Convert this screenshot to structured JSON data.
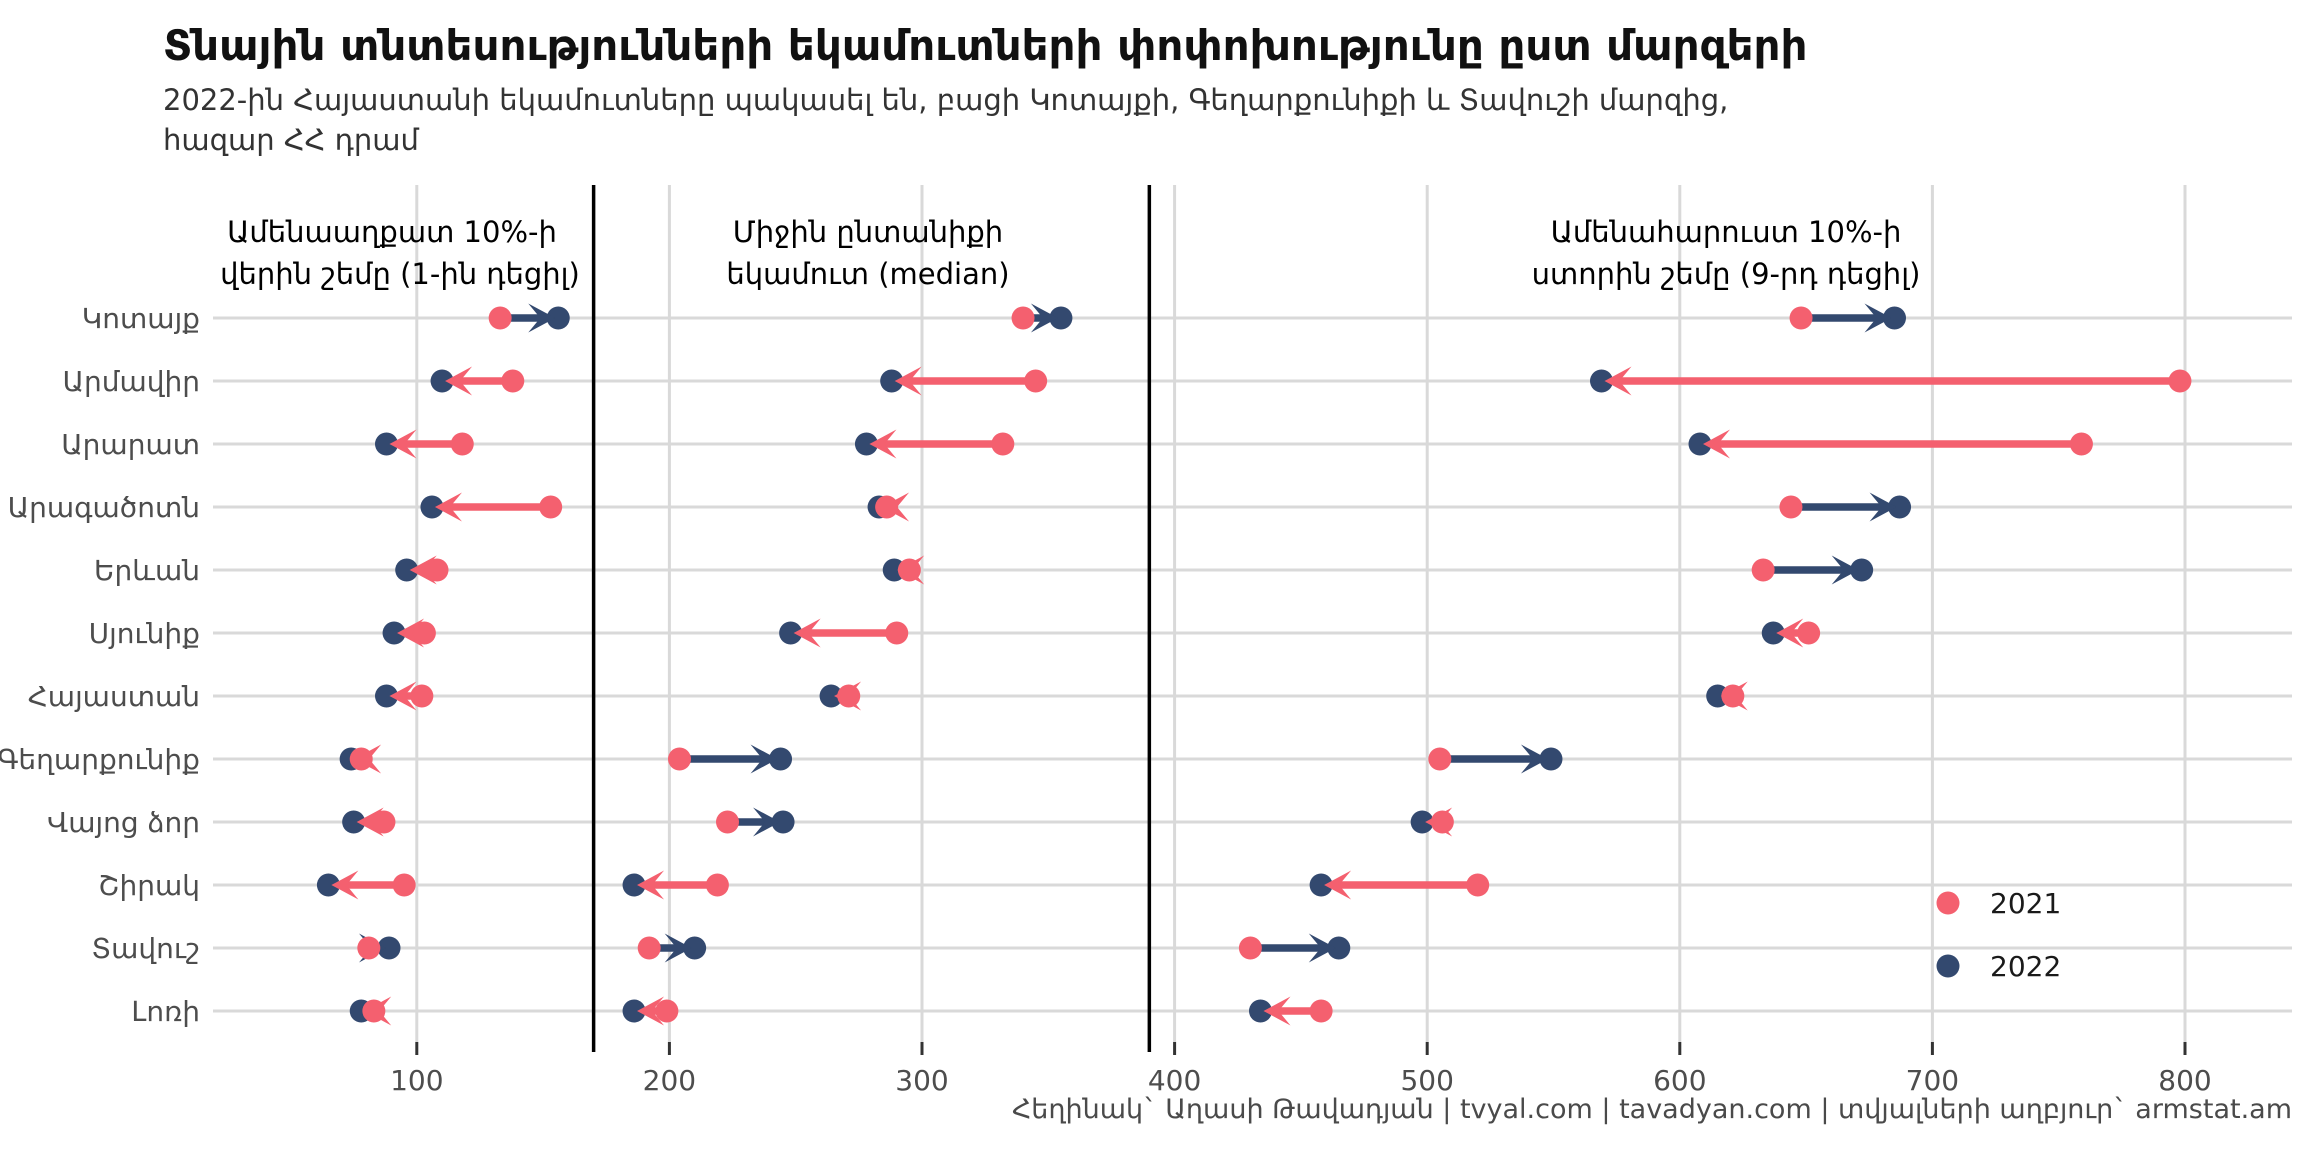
{
  "header": {
    "title": "Տնային տնտեսությունների եկամուտների փոփոխությունը ըստ մարզերի",
    "subtitle1": "2022-ին Հայաստանի եկամուտները պակասել են, բացի Կոտայքի, Գեղարքունիքի և Տավուշի մարզից,",
    "subtitle2": "հազար ՀՀ դրամ"
  },
  "legend": {
    "items": [
      {
        "label": "2021",
        "color": "#F4606F"
      },
      {
        "label": "2022",
        "color": "#33496F"
      }
    ]
  },
  "footer": {
    "caption": "Հեղինակ` Աղասի Թավադյան   |   tvyal.com   |   tavadyan.com   |   տվյալների աղբյուր` armstat.am"
  },
  "chart_data": {
    "type": "dumbbell-arrow",
    "title": "Տնային տնտեսությունների եկամուտների փոփոխությունը ըստ մարզերի",
    "subtitle": "2022-ին Հայաստանի եկամուտները պակասել են, բացի Կոտայքի, Գեղարքունիքի և Տավուշի մարզից, հազար ՀՀ դրամ",
    "units": "հազար ՀՀ դրամ",
    "years": [
      "2021",
      "2022"
    ],
    "colors": {
      "2021": "#F4606F",
      "2022": "#33496F"
    },
    "grid": true,
    "legend_position": "inside-right-bottom",
    "x_axis": {
      "ticks": [
        100,
        200,
        300,
        400,
        500,
        600,
        700,
        800
      ],
      "range": [
        19,
        843
      ]
    },
    "regions": [
      "Կոտայք",
      "Արմավիր",
      "Արարատ",
      "Արագածոտն",
      "Երևան",
      "Սյունիք",
      "Հայաստան",
      "Գեղարքունիք",
      "Վայոց ձոր",
      "Շիրակ",
      "Տավուշ",
      "Լոռի"
    ],
    "facets": [
      {
        "header_line1": "Ամենաաղքատ 10%-ի",
        "header_line2": "վերին շեմը (1-ին դեցիլ)",
        "x_min": 19,
        "x_max": 170,
        "values_2021_2022": [
          [
            133,
            156
          ],
          [
            138,
            110
          ],
          [
            118,
            88
          ],
          [
            153,
            106
          ],
          [
            108,
            96
          ],
          [
            103,
            91
          ],
          [
            102,
            88
          ],
          [
            78,
            74
          ],
          [
            87,
            75
          ],
          [
            95,
            65
          ],
          [
            81,
            89
          ],
          [
            83,
            78
          ]
        ]
      },
      {
        "header_line1": "Միջին ընտանիքի",
        "header_line2": "եկամուտ (median)",
        "x_min": 170,
        "x_max": 390,
        "values_2021_2022": [
          [
            340,
            355
          ],
          [
            345,
            288
          ],
          [
            332,
            278
          ],
          [
            286,
            283
          ],
          [
            295,
            289
          ],
          [
            290,
            248
          ],
          [
            271,
            264
          ],
          [
            204,
            244
          ],
          [
            223,
            245
          ],
          [
            219,
            186
          ],
          [
            192,
            210
          ],
          [
            199,
            186
          ]
        ]
      },
      {
        "header_line1": "Ամենահարուստ 10%-ի",
        "header_line2": "ստորին շեմը (9-րդ դեցիլ)",
        "x_min": 390,
        "x_max": 843,
        "values_2021_2022": [
          [
            648,
            685
          ],
          [
            798,
            569
          ],
          [
            759,
            608
          ],
          [
            644,
            687
          ],
          [
            633,
            672
          ],
          [
            651,
            637
          ],
          [
            621,
            615
          ],
          [
            505,
            549
          ],
          [
            506,
            498
          ],
          [
            520,
            458
          ],
          [
            430,
            465
          ],
          [
            458,
            434
          ]
        ]
      }
    ]
  }
}
